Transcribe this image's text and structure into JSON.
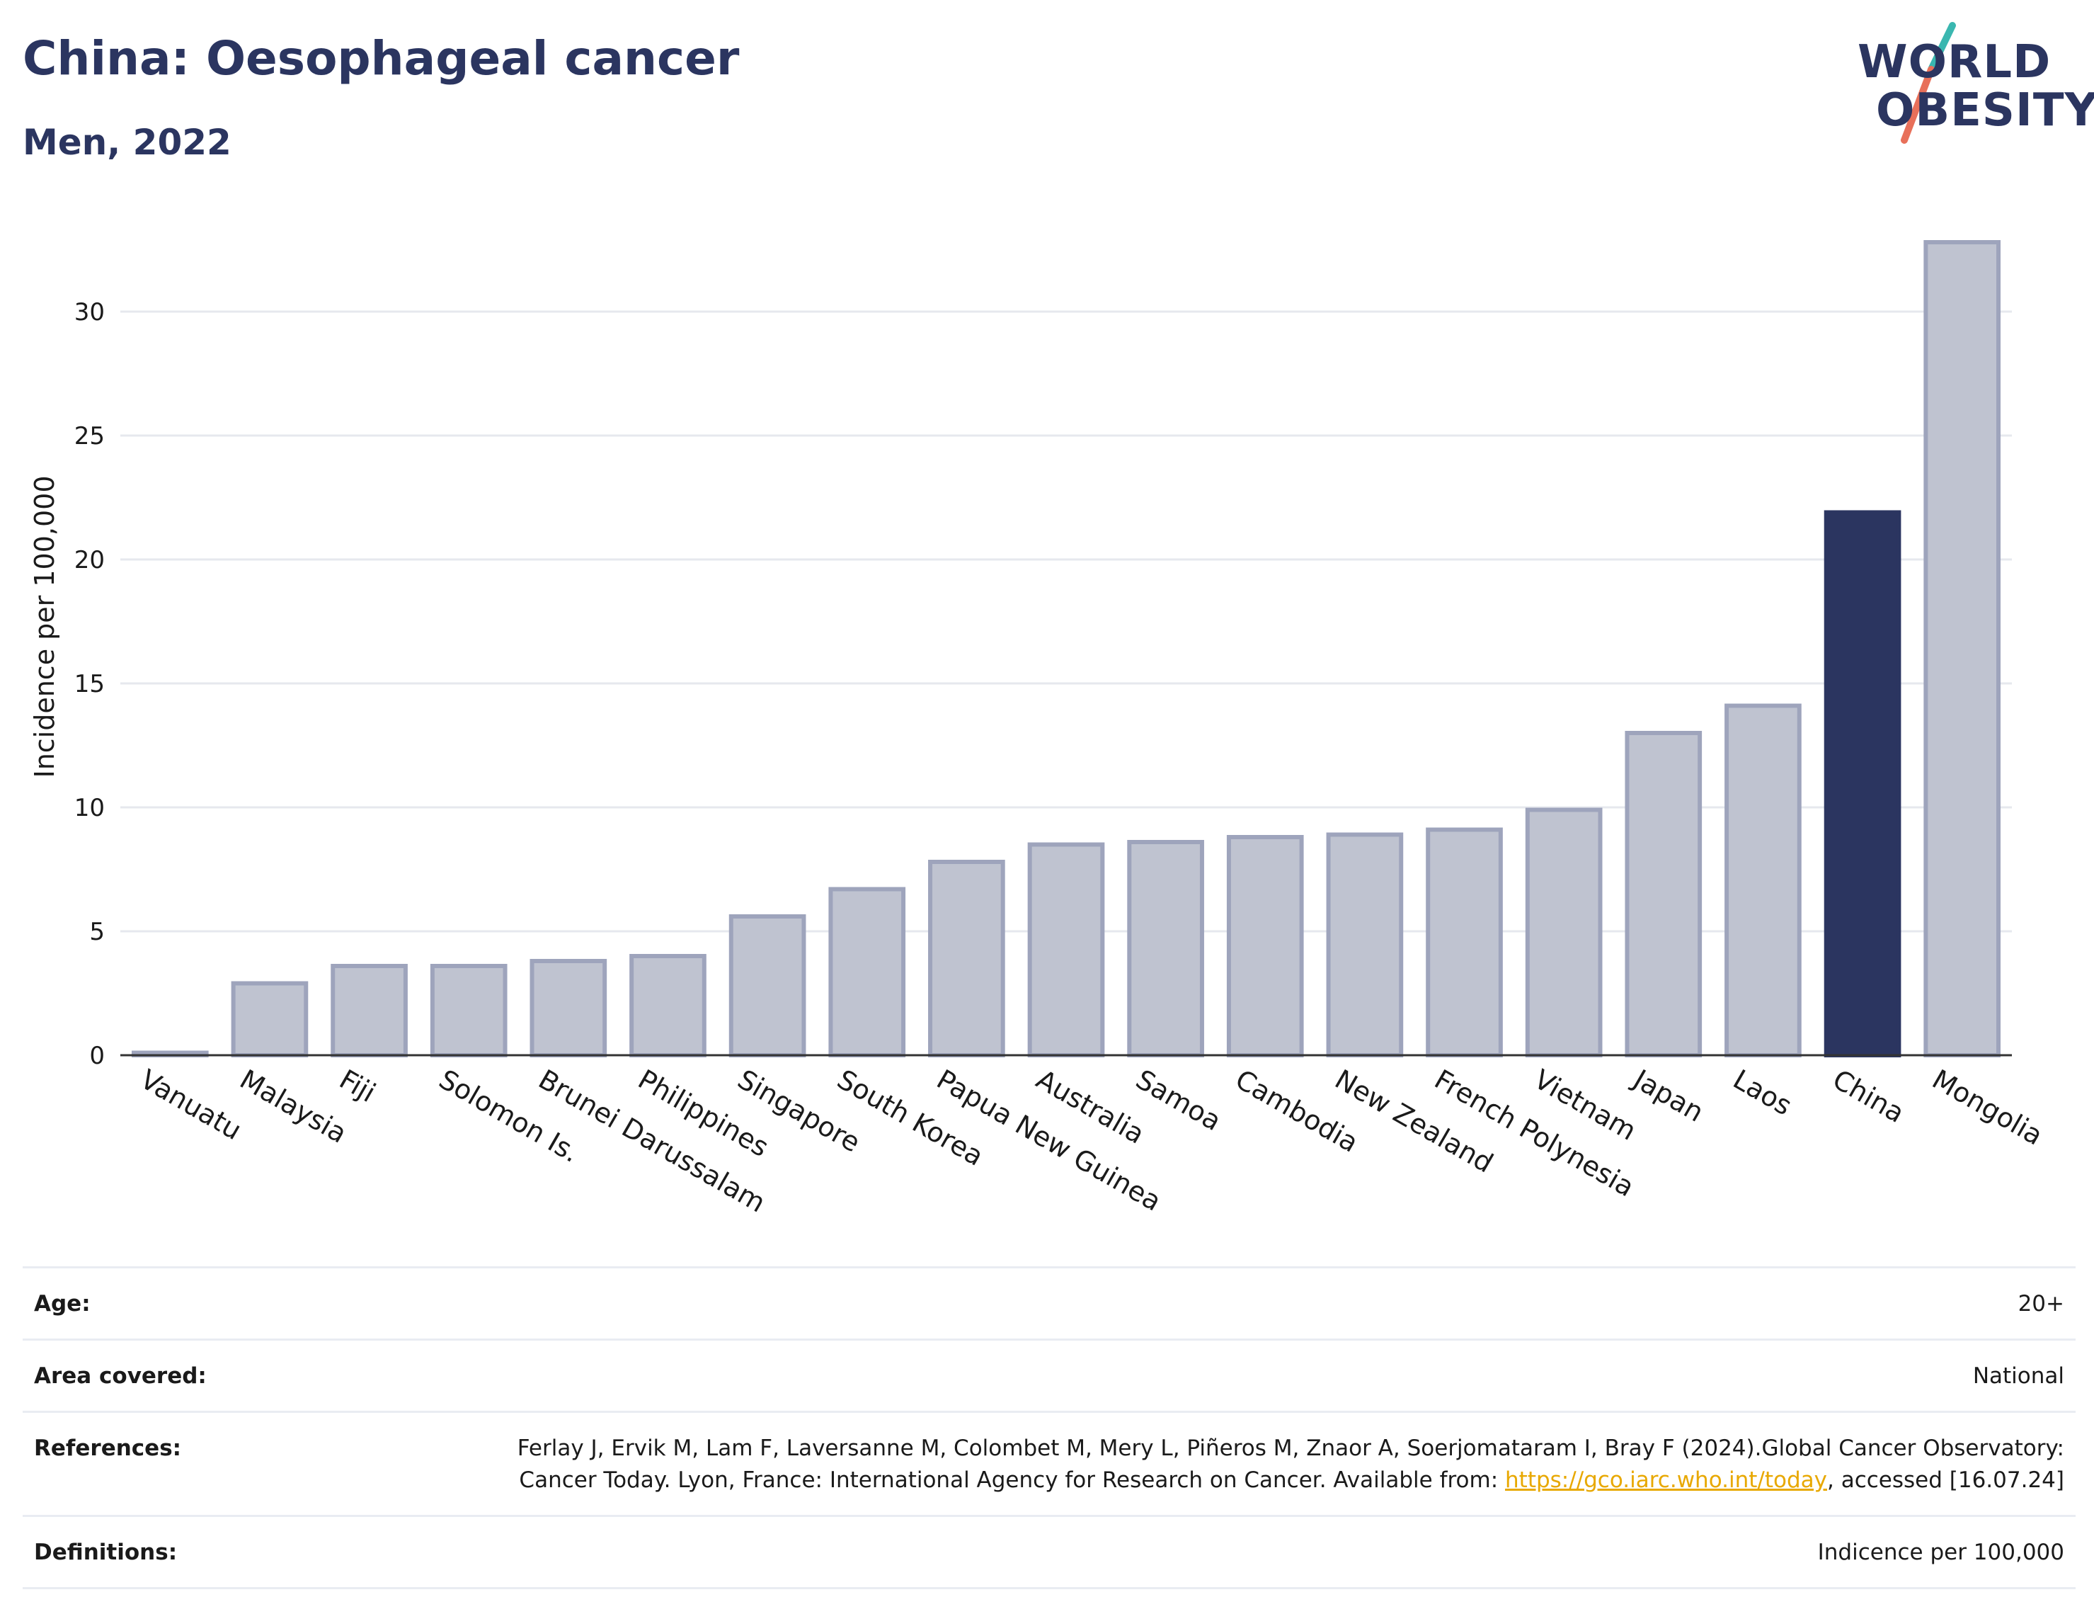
{
  "header": {
    "title": "China: Oesophageal cancer",
    "subtitle": "Men, 2022"
  },
  "logo": {
    "line1": "WORLD",
    "line2": "OBESITY",
    "colors": {
      "text": "#2b3560",
      "slash_top": "#3ab7b0",
      "slash_bottom": "#e8705a"
    }
  },
  "colors": {
    "bar_default_fill": "#bfc3d0",
    "bar_default_stroke": "#9ea4bc",
    "bar_highlight": "#2b3560",
    "grid": "#e6e8ee",
    "axis": "#333333"
  },
  "chart_data": {
    "type": "bar",
    "categories": [
      "Vanuatu",
      "Malaysia",
      "Fiji",
      "Solomon Is.",
      "Brunei Darussalam",
      "Philippines",
      "Singapore",
      "South Korea",
      "Papua New Guinea",
      "Australia",
      "Samoa",
      "Cambodia",
      "New Zealand",
      "French Polynesia",
      "Vietnam",
      "Japan",
      "Laos",
      "China",
      "Mongolia"
    ],
    "values": [
      0.1,
      2.9,
      3.6,
      3.6,
      3.8,
      4.0,
      5.6,
      6.7,
      7.8,
      8.5,
      8.6,
      8.8,
      8.9,
      9.1,
      9.9,
      13.0,
      14.1,
      21.9,
      32.8
    ],
    "highlight": "China",
    "ylabel": "Incidence per 100,000",
    "xlabel": "",
    "ylim": [
      0,
      34
    ],
    "yticks": [
      0,
      5,
      10,
      15,
      20,
      25,
      30
    ],
    "grid": true
  },
  "meta": {
    "rows": [
      {
        "label": "Age:",
        "value": "20+"
      },
      {
        "label": "Area covered:",
        "value": "National"
      },
      {
        "label": "References:",
        "value_before": "Ferlay J, Ervik M, Lam F, Laversanne M, Colombet M, Mery L, Piñeros M, Znaor A, Soerjomataram I, Bray F (2024).Global Cancer Observatory: Cancer Today. Lyon, France: International Agency for Research on Cancer. Available from: ",
        "link": "https://gco.iarc.who.int/today",
        "value_after": ", accessed [16.07.24]"
      },
      {
        "label": "Definitions:",
        "value": "Indicence per 100,000"
      }
    ]
  }
}
